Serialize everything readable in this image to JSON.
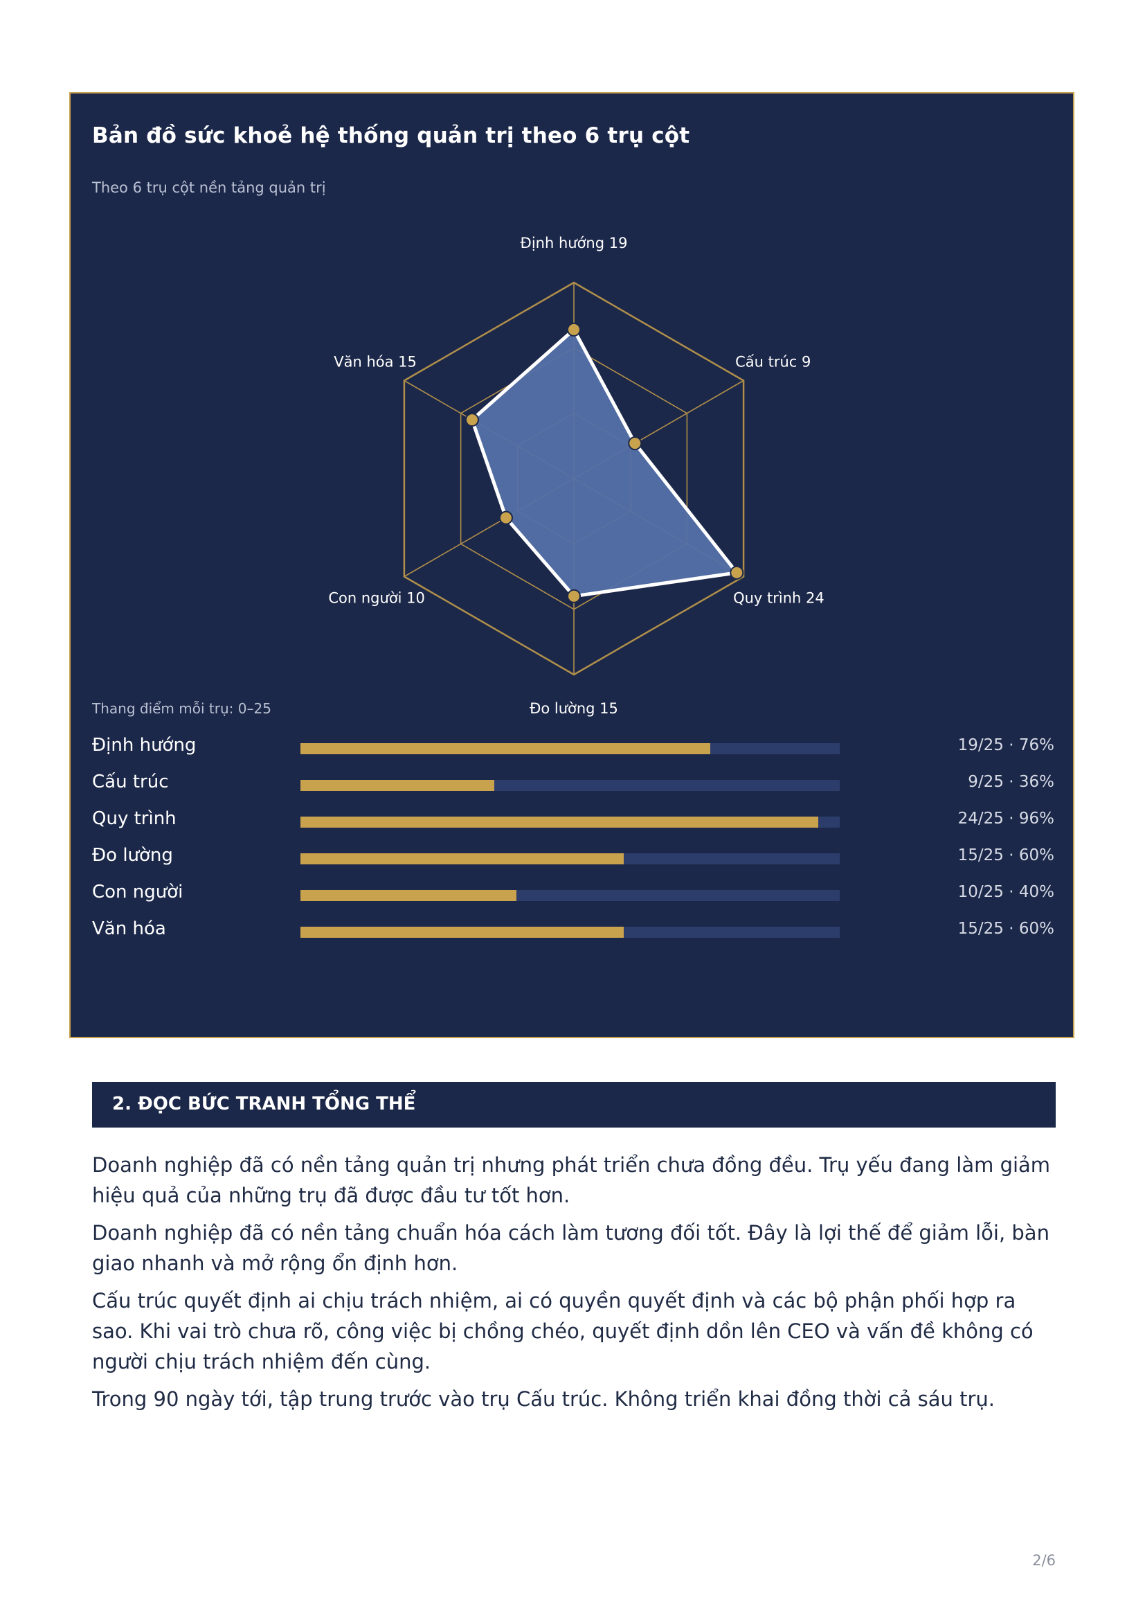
{
  "panel": {
    "title": "Bản đồ sức khoẻ hệ thống quản trị theo 6 trụ cột",
    "subtitle": "Theo 6 trụ cột nền tảng quản trị",
    "scale_note": "Thang điểm mỗi trụ: 0–25"
  },
  "chart_data": [
    {
      "type": "radar",
      "categories": [
        "Định hướng",
        "Cấu trúc",
        "Quy trình",
        "Đo lường",
        "Con người",
        "Văn hóa"
      ],
      "axis_labels": [
        "Định hướng 19",
        "Cấu trúc 9",
        "Quy trình 24",
        "Đo lường 15",
        "Con người 10",
        "Văn hóa 15"
      ],
      "values": [
        19,
        9,
        24,
        15,
        10,
        15
      ],
      "range": [
        0,
        25
      ],
      "grid_levels": 3,
      "colors": {
        "fill": "#5470a8",
        "line": "#ffffff",
        "grid": "#b08f4a",
        "point": "#c9a24d"
      }
    },
    {
      "type": "bar",
      "orientation": "horizontal",
      "categories": [
        "Định hướng",
        "Cấu trúc",
        "Quy trình",
        "Đo lường",
        "Con người",
        "Văn hóa"
      ],
      "values": [
        19,
        9,
        24,
        15,
        10,
        15
      ],
      "max": 25,
      "value_labels": [
        "19/25 · 76%",
        "9/25 · 36%",
        "24/25 · 96%",
        "15/25 · 60%",
        "10/25 · 40%",
        "15/25 · 60%"
      ],
      "colors": {
        "fill": "#c9a24d",
        "track": "#2d3d6b"
      }
    }
  ],
  "section": {
    "title": "2. ĐỌC BỨC TRANH TỔNG THỂ",
    "paragraphs": [
      "Doanh nghiệp đã có nền tảng quản trị nhưng phát triển chưa đồng đều. Trụ yếu đang làm giảm hiệu quả của những trụ đã được đầu tư tốt hơn.",
      "Doanh nghiệp đã có nền tảng chuẩn hóa cách làm tương đối tốt. Đây là lợi thế để giảm lỗi, bàn giao nhanh và mở rộng ổn định hơn.",
      "Cấu trúc quyết định ai chịu trách nhiệm, ai có quyền quyết định và các bộ phận phối hợp ra sao. Khi vai trò chưa rõ, công việc bị chồng chéo, quyết định dồn lên CEO và vấn đề không có người chịu trách nhiệm đến cùng.",
      "Trong 90 ngày tới, tập trung trước vào trụ Cấu trúc. Không triển khai đồng thời cả sáu trụ."
    ]
  },
  "page_number": "2/6"
}
